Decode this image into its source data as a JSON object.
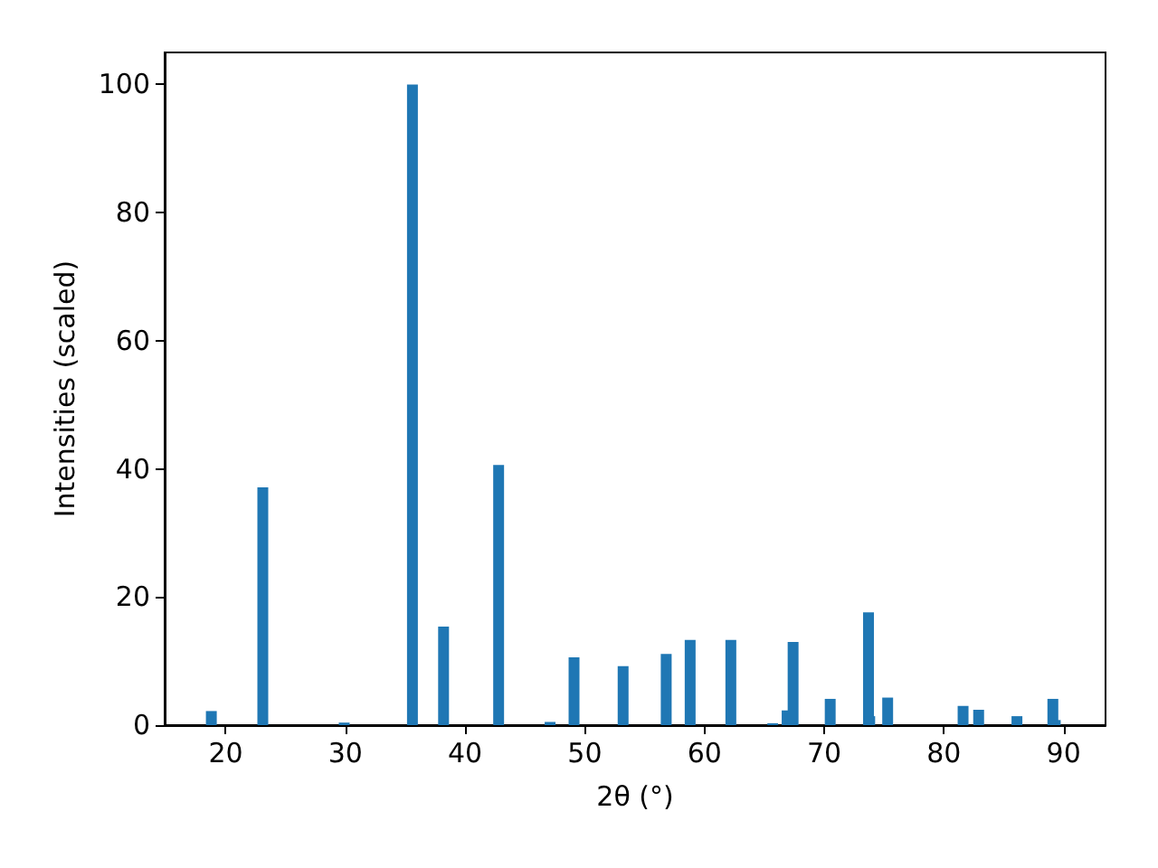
{
  "chart_data": {
    "type": "bar",
    "xlabel": "2θ (°)",
    "ylabel": "Intensities (scaled)",
    "color": "#1f77b4",
    "x": [
      18.8,
      23.1,
      29.9,
      35.6,
      38.2,
      42.8,
      47.1,
      49.1,
      53.2,
      56.8,
      58.8,
      62.2,
      65.7,
      66.9,
      67.4,
      70.5,
      73.7,
      73.8,
      75.3,
      81.6,
      82.9,
      86.1,
      89.1,
      89.3
    ],
    "values": [
      2.2,
      37.1,
      0.4,
      100,
      15.4,
      40.6,
      0.5,
      10.6,
      9.2,
      11.1,
      13.3,
      13.3,
      0.3,
      2.3,
      13.0,
      4.1,
      17.6,
      1.4,
      4.3,
      3.0,
      2.4,
      1.4,
      4.1,
      0.8
    ],
    "xlim": [
      14.9,
      93.5
    ],
    "xticks": [
      20,
      30,
      40,
      50,
      60,
      70,
      80,
      90
    ],
    "ylim": [
      0,
      105
    ],
    "yticks": [
      0,
      20,
      40,
      60,
      80,
      100
    ]
  }
}
